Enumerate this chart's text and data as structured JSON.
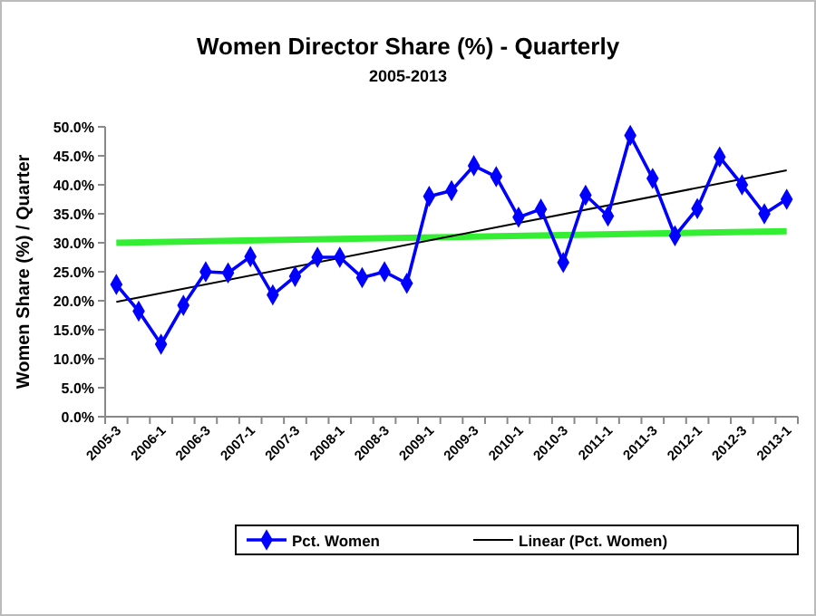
{
  "chart_data": {
    "type": "line",
    "title": "Women Director Share (%) - Quarterly",
    "subtitle": "2005-2013",
    "ylabel": "Women Share (%) / Quarter",
    "categories": [
      "2005-3",
      null,
      "2006-1",
      null,
      "2006-3",
      null,
      "2007-1",
      null,
      "2007-3",
      null,
      "2008-1",
      null,
      "2008-3",
      null,
      "2009-1",
      null,
      "2009-3",
      null,
      "2010-1",
      null,
      "2010-3",
      null,
      "2011-1",
      null,
      "2011-3",
      null,
      "2012-1",
      null,
      "2012-3",
      null,
      "2013-1"
    ],
    "series": [
      {
        "name": "Pct. Women",
        "color": "#0000ff",
        "marker": "diamond",
        "values": [
          22.8,
          18.2,
          12.5,
          19.2,
          25.0,
          24.8,
          27.6,
          21.0,
          24.2,
          27.5,
          27.5,
          24.0,
          25.0,
          23.0,
          38.0,
          39.0,
          43.3,
          41.4,
          34.4,
          35.8,
          26.6,
          38.2,
          34.6,
          48.5,
          41.1,
          31.2,
          35.9,
          44.8,
          40.0,
          35.0,
          37.5
        ]
      },
      {
        "name": "Linear (Pct. Women)",
        "color": "#000000",
        "marker": "none",
        "x": [
          "2005-3",
          "2013-1"
        ],
        "values": [
          19.8,
          42.5
        ]
      },
      {
        "color": "#33ee33",
        "marker": "none",
        "x": [
          "2005-3",
          "2013-1"
        ],
        "values": [
          30.0,
          32.0
        ]
      }
    ],
    "ylim": [
      0,
      50
    ],
    "yticks": [
      {
        "value": 0,
        "label": "0.0%"
      },
      {
        "value": 5,
        "label": "5.0%"
      },
      {
        "value": 10,
        "label": "10.0%"
      },
      {
        "value": 15,
        "label": "15.0%"
      },
      {
        "value": 20,
        "label": "20.0%"
      },
      {
        "value": 25,
        "label": "25.0%"
      },
      {
        "value": 30,
        "label": "30.0%"
      },
      {
        "value": 35,
        "label": "35.0%"
      },
      {
        "value": 40,
        "label": "40.0%"
      },
      {
        "value": 45,
        "label": "45.0%"
      },
      {
        "value": 50,
        "label": "50.0%"
      }
    ],
    "legend": "bottom",
    "grid": false
  }
}
